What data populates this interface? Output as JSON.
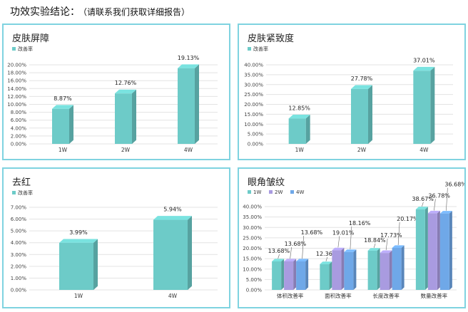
{
  "header": {
    "title": "功效实验结论：",
    "subtitle": "（请联系我们获取详细报告）"
  },
  "chart_data": [
    {
      "type": "bar",
      "title": "皮肤屏障",
      "categories": [
        "1W",
        "2W",
        "4W"
      ],
      "series": [
        {
          "name": "改善率",
          "values": [
            8.87,
            12.76,
            19.13
          ],
          "labels": [
            "8.87%",
            "12.76%",
            "19.13%"
          ]
        }
      ],
      "ylim": [
        0,
        20
      ],
      "ytick_step": 2,
      "yticks": [
        "0.00%",
        "2.00%",
        "4.00%",
        "6.00%",
        "8.00%",
        "10.00%",
        "12.00%",
        "14.00%",
        "16.00%",
        "18.00%",
        "20.00%"
      ],
      "legend": "top-left",
      "grid": true
    },
    {
      "type": "bar",
      "title": "皮肤紧致度",
      "categories": [
        "1W",
        "2W",
        "4W"
      ],
      "series": [
        {
          "name": "改善率",
          "values": [
            12.85,
            27.78,
            37.01
          ],
          "labels": [
            "12.85%",
            "27.78%",
            "37.01%"
          ]
        }
      ],
      "ylim": [
        0,
        40
      ],
      "ytick_step": 5,
      "yticks": [
        "0.00%",
        "5.00%",
        "10.00%",
        "15.00%",
        "20.00%",
        "25.00%",
        "30.00%",
        "35.00%",
        "40.00%"
      ],
      "legend": "top-left",
      "grid": true
    },
    {
      "type": "bar",
      "title": "去红",
      "categories": [
        "1W",
        "4W"
      ],
      "series": [
        {
          "name": "改善率",
          "values": [
            3.99,
            5.94
          ],
          "labels": [
            "3.99%",
            "5.94%"
          ]
        }
      ],
      "ylim": [
        0,
        7
      ],
      "ytick_step": 1,
      "yticks": [
        "0.00%",
        "1.00%",
        "2.00%",
        "3.00%",
        "4.00%",
        "5.00%",
        "6.00%",
        "7.00%"
      ],
      "legend": "top-left",
      "grid": true
    },
    {
      "type": "bar",
      "title": "眼角皱纹",
      "categories": [
        "体积改善率",
        "面积改善率",
        "长度改善率",
        "数量改善率"
      ],
      "series": [
        {
          "name": "1W",
          "values": [
            13.68,
            12.36,
            18.84,
            38.67
          ],
          "labels": [
            "13.68%",
            "12.36%",
            "18.84%",
            "38.67%"
          ]
        },
        {
          "name": "2W",
          "values": [
            13.68,
            19.01,
            17.73,
            36.78
          ],
          "labels": [
            "13.68%",
            "19.01%",
            "17.73%",
            "36.78%"
          ]
        },
        {
          "name": "4W",
          "values": [
            13.68,
            18.16,
            20.17,
            36.68
          ],
          "labels": [
            "13.68%",
            "18.16%",
            "20.17%",
            "36.68%"
          ]
        }
      ],
      "ylim": [
        0,
        40
      ],
      "ytick_step": 5,
      "yticks": [
        "0.00%",
        "5.00%",
        "10.00%",
        "15.00%",
        "20.00%",
        "25.00%",
        "30.00%",
        "35.00%",
        "40.00%"
      ],
      "legend": "top-left",
      "grid": true
    }
  ],
  "colors": {
    "single": "#6dcbc8",
    "series": [
      "#6dcbc8",
      "#a99be0",
      "#6fa8e8"
    ],
    "border": "#7fd3e0",
    "grid": "#e3e3e3"
  }
}
